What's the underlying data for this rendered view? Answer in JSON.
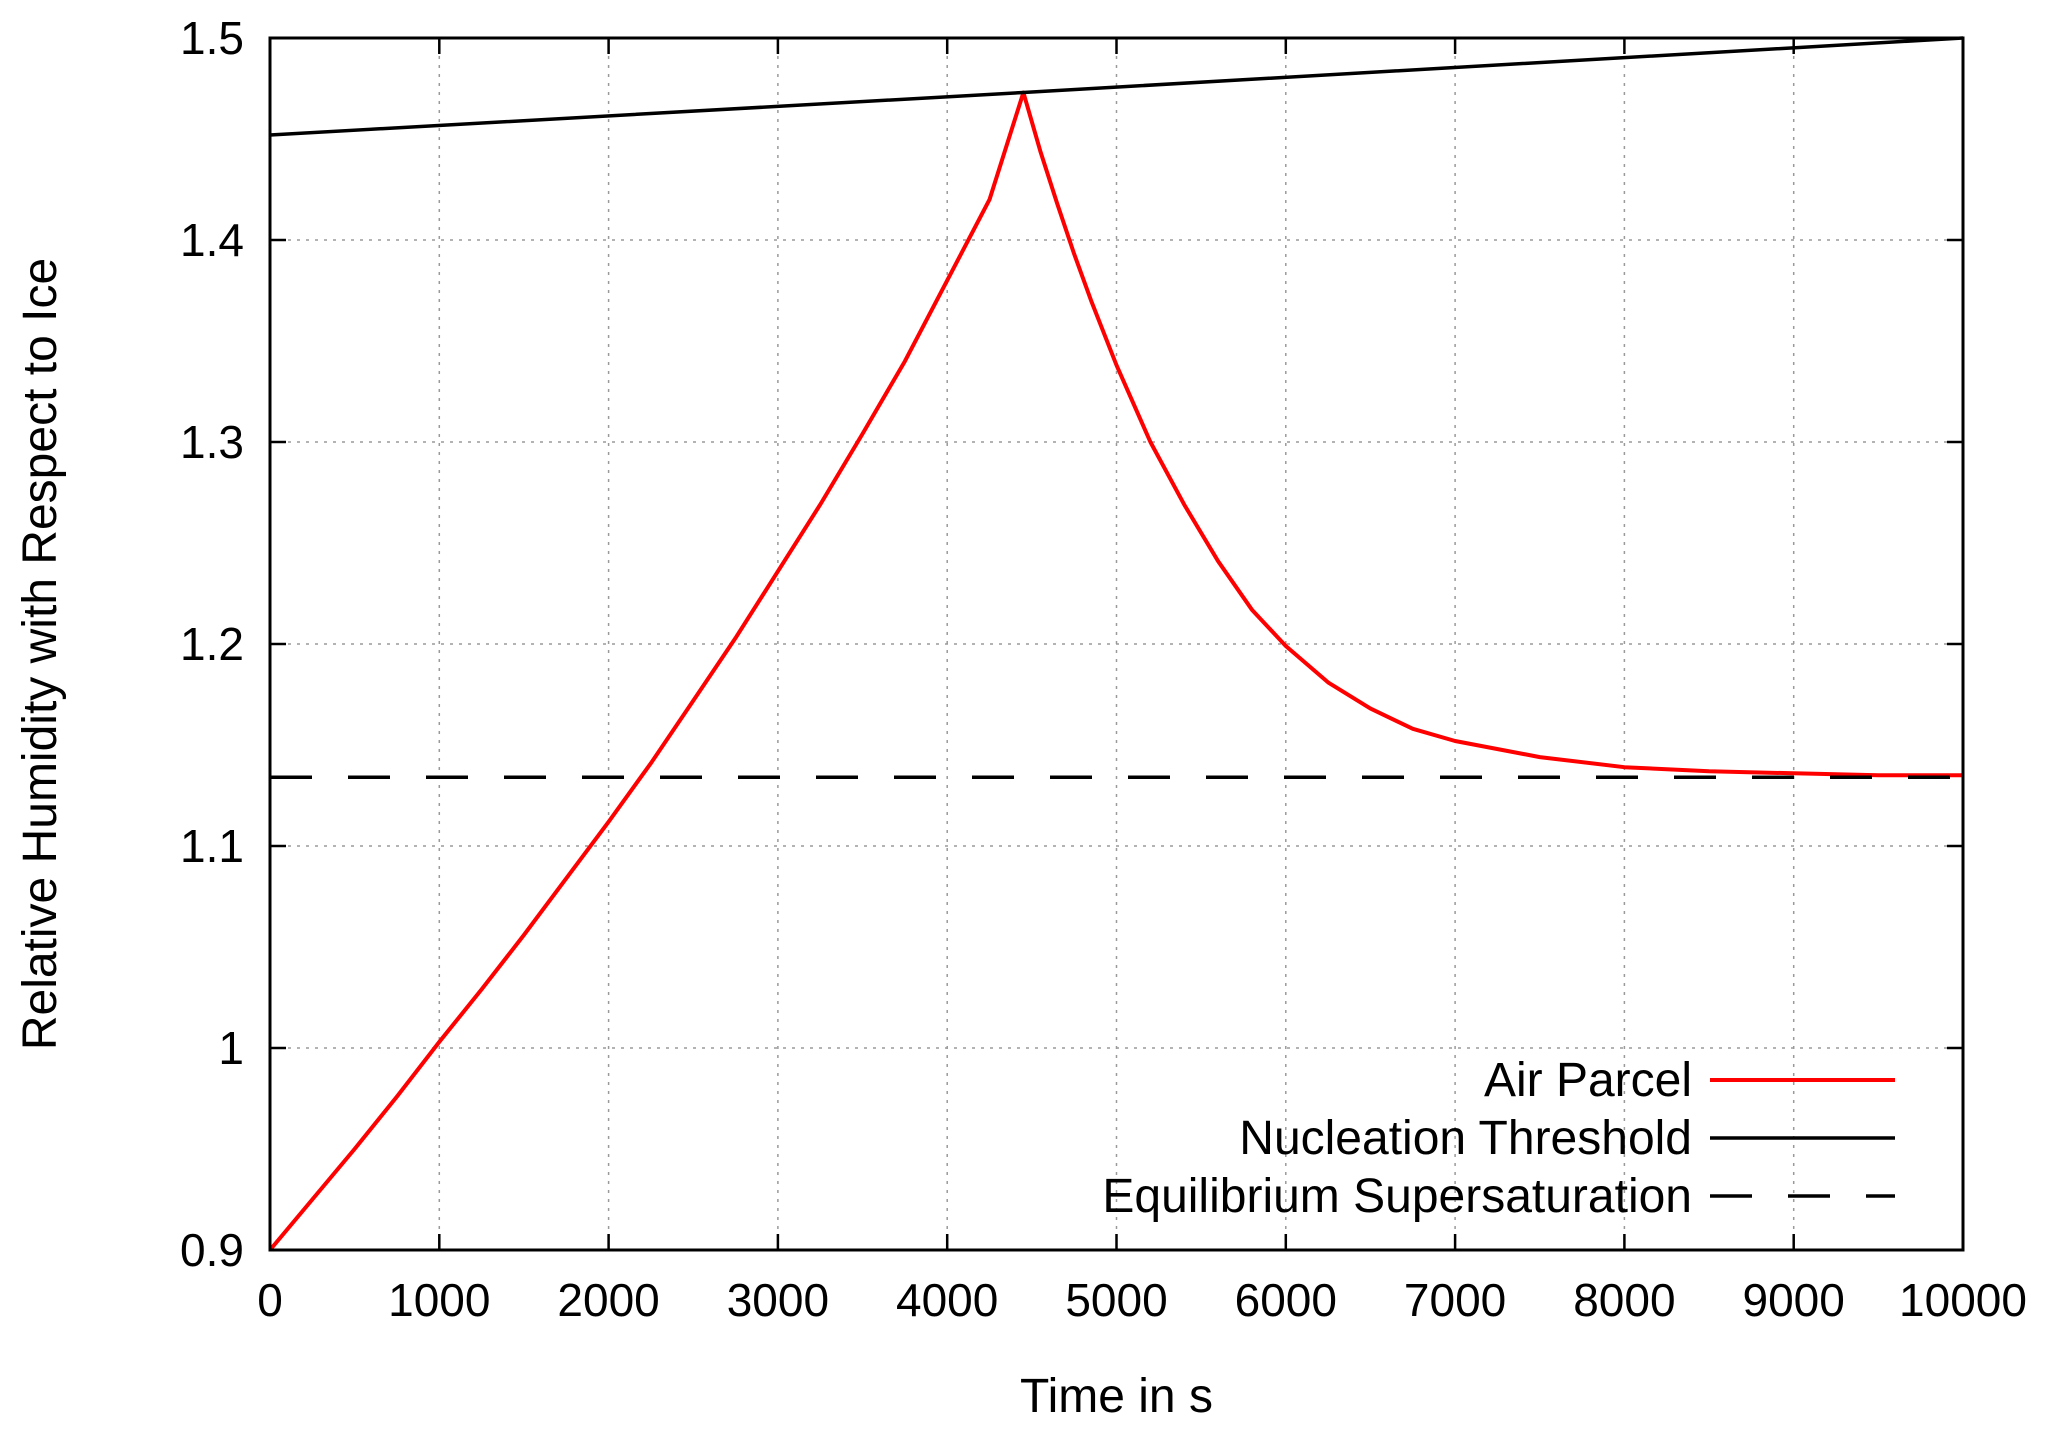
{
  "chart_data": {
    "type": "line",
    "xlabel": "Time in s",
    "ylabel": "Relative Humidity with Respect to Ice",
    "xlim": [
      0,
      10000
    ],
    "ylim": [
      0.9,
      1.5
    ],
    "xticks": [
      0,
      1000,
      2000,
      3000,
      4000,
      5000,
      6000,
      7000,
      8000,
      9000,
      10000
    ],
    "xtick_labels": [
      "0",
      "1000",
      "2000",
      "3000",
      "4000",
      "5000",
      "6000",
      "7000",
      "8000",
      "9000",
      "10000"
    ],
    "yticks": [
      0.9,
      1.0,
      1.1,
      1.2,
      1.3,
      1.4,
      1.5
    ],
    "ytick_labels": [
      "0.9",
      "1",
      "1.1",
      "1.2",
      "1.3",
      "1.4",
      "1.5"
    ],
    "grid": true,
    "legend_position": "bottom-right",
    "series": [
      {
        "name": "Air Parcel",
        "color": "#ff0000",
        "style": "solid",
        "x": [
          0,
          250,
          500,
          750,
          1000,
          1250,
          1500,
          1750,
          2000,
          2250,
          2500,
          2750,
          3000,
          3250,
          3500,
          3750,
          4000,
          4250,
          4450,
          4550,
          4650,
          4750,
          4850,
          5000,
          5200,
          5400,
          5600,
          5800,
          6000,
          6250,
          6500,
          6750,
          7000,
          7500,
          8000,
          8500,
          9000,
          9500,
          10000
        ],
        "y": [
          0.9,
          0.925,
          0.95,
          0.976,
          1.003,
          1.029,
          1.056,
          1.084,
          1.112,
          1.141,
          1.172,
          1.203,
          1.236,
          1.269,
          1.304,
          1.34,
          1.38,
          1.42,
          1.473,
          1.444,
          1.418,
          1.393,
          1.37,
          1.338,
          1.3,
          1.269,
          1.241,
          1.217,
          1.199,
          1.181,
          1.168,
          1.158,
          1.152,
          1.144,
          1.139,
          1.137,
          1.136,
          1.135,
          1.135
        ]
      },
      {
        "name": "Nucleation Threshold",
        "color": "#000000",
        "style": "solid",
        "x": [
          0,
          4450,
          10000
        ],
        "y": [
          1.452,
          1.473,
          1.5
        ]
      },
      {
        "name": "Equilibrium Supersaturation",
        "color": "#000000",
        "style": "dashed",
        "x": [
          0,
          10000
        ],
        "y": [
          1.134,
          1.134
        ]
      }
    ]
  }
}
